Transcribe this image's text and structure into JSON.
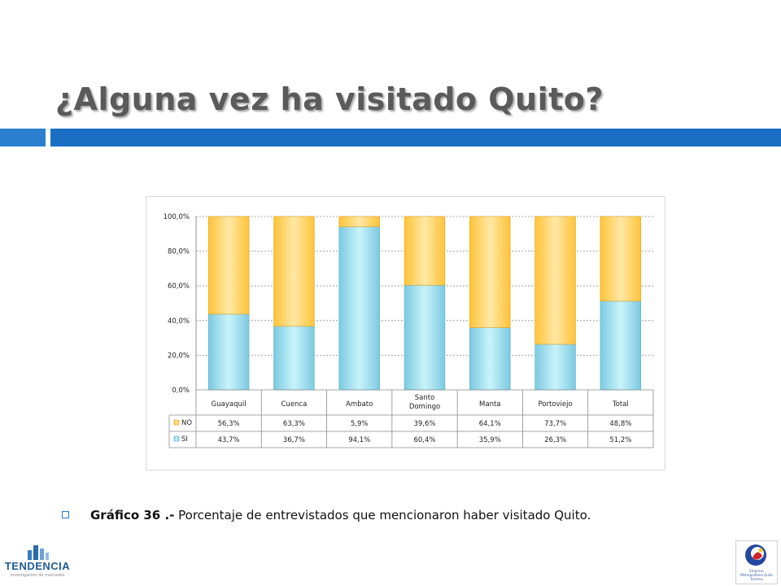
{
  "slide": {
    "title": "¿Alguna vez ha visitado Quito?",
    "caption_bold": "Gráfico 36 .-",
    "caption_text": " Porcentaje de entrevistados que mencionaron haber visitado Quito.",
    "logo_left_name": "TENDENCIA",
    "logo_left_sub": "investigación de mercados",
    "logo_right_sub": "Empresa Metropolitana Quito Turismo"
  },
  "colors": {
    "accent_blue": "#1a6fc4",
    "si_fill": "#a9e6f5",
    "no_fill": "#ffd260"
  },
  "chart_data": {
    "type": "bar",
    "stacked": true,
    "categories": [
      "Guayaquil",
      "Cuenca",
      "Ambato",
      "Santo Domingo",
      "Manta",
      "Portoviejo",
      "Total"
    ],
    "series": [
      {
        "name": "SI",
        "values": [
          43.7,
          36.7,
          94.1,
          60.4,
          35.9,
          26.3,
          51.2
        ],
        "labels": [
          "43,7%",
          "36,7%",
          "94,1%",
          "60,4%",
          "35,9%",
          "26,3%",
          "51,2%"
        ]
      },
      {
        "name": "NO",
        "values": [
          56.3,
          63.3,
          5.9,
          39.6,
          64.1,
          73.7,
          48.8
        ],
        "labels": [
          "56,3%",
          "63,3%",
          "5,9%",
          "39,6%",
          "64,1%",
          "73,7%",
          "48,8%"
        ]
      }
    ],
    "ylim": [
      0,
      100
    ],
    "yticks": [
      "0,0%",
      "20,0%",
      "40,0%",
      "60,0%",
      "80,0%",
      "100,0%"
    ],
    "grid": true,
    "legend": "data-table"
  }
}
